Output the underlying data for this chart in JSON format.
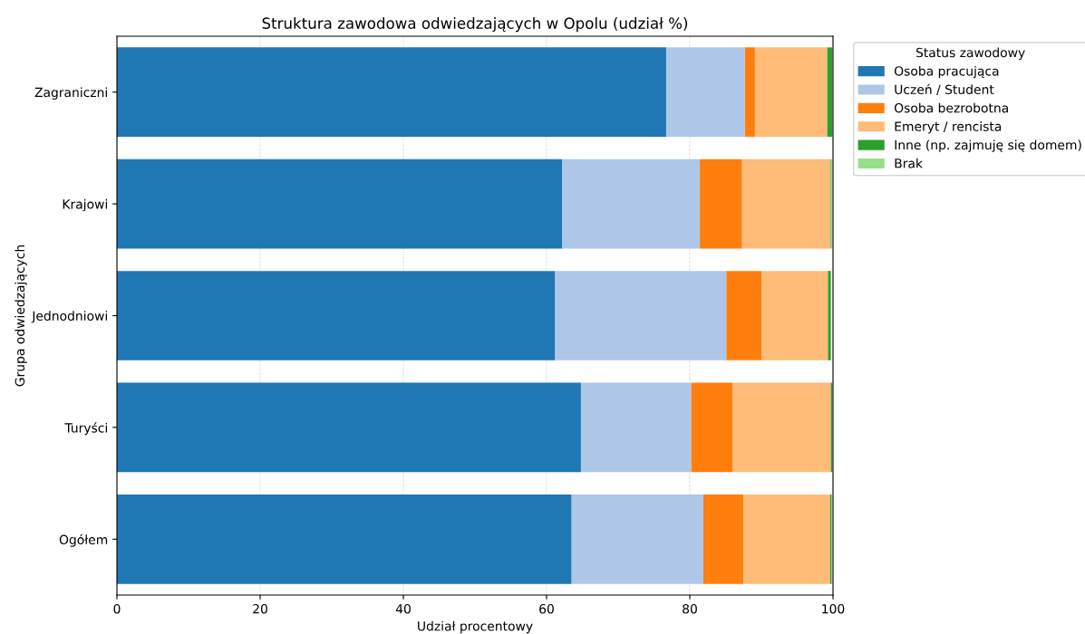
{
  "chart_data": {
    "type": "bar",
    "orientation": "horizontal",
    "stacked": true,
    "title": "Struktura zawodowa odwiedzających w Opolu (udział %)",
    "xlabel": "Udział procentowy",
    "ylabel": "Grupa odwiedzających",
    "legend_title": "Status zawodowy",
    "categories": [
      "Zagraniczni",
      "Krajowi",
      "Jednodniowi",
      "Turyści",
      "Ogółem"
    ],
    "series": [
      {
        "name": "Osoba pracująca",
        "color": "#1f77b4",
        "values": [
          76.7,
          62.2,
          61.2,
          64.8,
          63.5
        ]
      },
      {
        "name": "Uczeń / Student",
        "color": "#aec7e8",
        "values": [
          11.0,
          19.2,
          23.9,
          15.4,
          18.4
        ]
      },
      {
        "name": "Osoba bezrobotna",
        "color": "#ff7f0e",
        "values": [
          1.4,
          5.9,
          4.9,
          5.8,
          5.6
        ]
      },
      {
        "name": "Emeryt / rencista",
        "color": "#ffbb78",
        "values": [
          10.1,
          12.3,
          9.3,
          13.7,
          12.1
        ]
      },
      {
        "name": "Inne (np. zajmuję się domem)",
        "color": "#2ca02c",
        "values": [
          0.7,
          0.1,
          0.4,
          0.2,
          0.2
        ]
      },
      {
        "name": "Brak",
        "color": "#98df8a",
        "values": [
          null,
          0.2,
          null,
          null,
          0.1
        ]
      }
    ],
    "xlim": [
      0,
      100
    ],
    "xticks": [
      0,
      20,
      40,
      60,
      80,
      100
    ],
    "grid": "x",
    "legend": "top right"
  }
}
